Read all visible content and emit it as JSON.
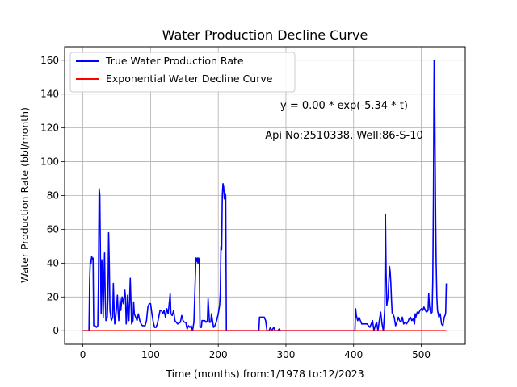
{
  "chart_data": {
    "type": "line",
    "title": "Water Production Decline Curve",
    "xlabel": "Time (months) from:1/1978 to:12/2023",
    "ylabel": "Water Production Rate (bbl/month)",
    "xlim": [
      -27,
      565
    ],
    "ylim": [
      -8,
      168
    ],
    "xticks": [
      0,
      100,
      200,
      300,
      400,
      500
    ],
    "yticks": [
      0,
      20,
      40,
      60,
      80,
      100,
      120,
      140,
      160
    ],
    "grid": true,
    "legend_position": "top-left",
    "annotations": [
      "y = 0.00 * exp(-5.34 * t)",
      "Api No:2510338, Well:86-S-10"
    ],
    "series": [
      {
        "name": "True Water Production Rate",
        "color": "#0000ff",
        "points": [
          [
            0,
            0
          ],
          [
            9,
            0
          ],
          [
            10,
            30
          ],
          [
            11,
            42
          ],
          [
            12,
            40
          ],
          [
            13,
            44
          ],
          [
            14,
            42
          ],
          [
            15,
            43
          ],
          [
            16,
            3
          ],
          [
            18,
            3
          ],
          [
            20,
            2
          ],
          [
            22,
            3
          ],
          [
            23,
            30
          ],
          [
            24,
            84
          ],
          [
            25,
            80
          ],
          [
            26,
            40
          ],
          [
            27,
            10
          ],
          [
            28,
            42
          ],
          [
            29,
            30
          ],
          [
            30,
            8
          ],
          [
            31,
            30
          ],
          [
            32,
            46
          ],
          [
            33,
            20
          ],
          [
            34,
            6
          ],
          [
            36,
            8
          ],
          [
            37,
            20
          ],
          [
            38,
            58
          ],
          [
            39,
            40
          ],
          [
            40,
            12
          ],
          [
            42,
            6
          ],
          [
            44,
            8
          ],
          [
            45,
            28
          ],
          [
            46,
            15
          ],
          [
            47,
            4
          ],
          [
            48,
            6
          ],
          [
            50,
            15
          ],
          [
            51,
            21
          ],
          [
            52,
            12
          ],
          [
            53,
            6
          ],
          [
            55,
            19
          ],
          [
            56,
            12
          ],
          [
            58,
            20
          ],
          [
            60,
            16
          ],
          [
            62,
            24
          ],
          [
            63,
            19
          ],
          [
            64,
            4
          ],
          [
            65,
            10
          ],
          [
            66,
            21
          ],
          [
            67,
            12
          ],
          [
            68,
            6
          ],
          [
            70,
            31
          ],
          [
            71,
            18
          ],
          [
            72,
            4
          ],
          [
            74,
            6
          ],
          [
            75,
            17
          ],
          [
            76,
            10
          ],
          [
            78,
            8
          ],
          [
            80,
            6
          ],
          [
            82,
            10
          ],
          [
            84,
            6
          ],
          [
            86,
            4
          ],
          [
            88,
            3
          ],
          [
            92,
            3
          ],
          [
            94,
            6
          ],
          [
            96,
            14
          ],
          [
            98,
            16
          ],
          [
            100,
            16
          ],
          [
            102,
            10
          ],
          [
            104,
            5
          ],
          [
            106,
            2
          ],
          [
            108,
            2
          ],
          [
            110,
            4
          ],
          [
            112,
            8
          ],
          [
            114,
            12
          ],
          [
            116,
            12
          ],
          [
            118,
            10
          ],
          [
            120,
            12
          ],
          [
            122,
            8
          ],
          [
            124,
            13
          ],
          [
            126,
            10
          ],
          [
            128,
            18
          ],
          [
            129,
            22
          ],
          [
            130,
            10
          ],
          [
            132,
            9
          ],
          [
            134,
            12
          ],
          [
            136,
            6
          ],
          [
            140,
            4
          ],
          [
            144,
            5
          ],
          [
            146,
            9
          ],
          [
            148,
            6
          ],
          [
            150,
            5
          ],
          [
            152,
            5
          ],
          [
            154,
            1
          ],
          [
            156,
            3
          ],
          [
            158,
            2
          ],
          [
            160,
            3
          ],
          [
            162,
            0
          ],
          [
            164,
            5
          ],
          [
            166,
            30
          ],
          [
            167,
            43
          ],
          [
            168,
            41
          ],
          [
            169,
            43
          ],
          [
            170,
            40
          ],
          [
            171,
            43
          ],
          [
            172,
            42
          ],
          [
            173,
            2
          ],
          [
            175,
            2
          ],
          [
            176,
            6
          ],
          [
            180,
            6
          ],
          [
            182,
            5
          ],
          [
            184,
            6
          ],
          [
            185,
            19
          ],
          [
            186,
            12
          ],
          [
            187,
            5
          ],
          [
            189,
            5
          ],
          [
            190,
            10
          ],
          [
            193,
            2
          ],
          [
            195,
            3
          ],
          [
            197,
            5
          ],
          [
            200,
            10
          ],
          [
            202,
            15
          ],
          [
            203,
            22
          ],
          [
            204,
            50
          ],
          [
            205,
            48
          ],
          [
            206,
            80
          ],
          [
            207,
            87
          ],
          [
            208,
            85
          ],
          [
            209,
            78
          ],
          [
            210,
            81
          ],
          [
            211,
            80
          ],
          [
            212,
            0
          ],
          [
            220,
            0
          ],
          [
            260,
            0
          ],
          [
            261,
            8
          ],
          [
            264,
            8
          ],
          [
            268,
            8
          ],
          [
            270,
            6
          ],
          [
            272,
            0
          ],
          [
            275,
            0
          ],
          [
            277,
            2
          ],
          [
            279,
            0
          ],
          [
            282,
            2
          ],
          [
            284,
            0
          ],
          [
            288,
            0
          ],
          [
            290,
            1
          ],
          [
            292,
            0
          ],
          [
            402,
            0
          ],
          [
            403,
            13
          ],
          [
            404,
            9
          ],
          [
            406,
            6
          ],
          [
            408,
            8
          ],
          [
            410,
            6
          ],
          [
            412,
            4
          ],
          [
            416,
            4
          ],
          [
            420,
            4
          ],
          [
            422,
            3
          ],
          [
            424,
            2
          ],
          [
            426,
            4
          ],
          [
            428,
            6
          ],
          [
            430,
            0
          ],
          [
            432,
            3
          ],
          [
            434,
            5
          ],
          [
            436,
            0
          ],
          [
            438,
            6
          ],
          [
            440,
            11
          ],
          [
            442,
            4
          ],
          [
            444,
            0
          ],
          [
            446,
            13
          ],
          [
            447,
            69
          ],
          [
            448,
            35
          ],
          [
            449,
            15
          ],
          [
            450,
            18
          ],
          [
            451,
            20
          ],
          [
            452,
            29
          ],
          [
            453,
            38
          ],
          [
            454,
            35
          ],
          [
            455,
            28
          ],
          [
            456,
            18
          ],
          [
            457,
            10
          ],
          [
            458,
            10
          ],
          [
            460,
            8
          ],
          [
            462,
            3
          ],
          [
            464,
            5
          ],
          [
            466,
            8
          ],
          [
            468,
            6
          ],
          [
            470,
            5
          ],
          [
            472,
            8
          ],
          [
            474,
            4
          ],
          [
            476,
            5
          ],
          [
            478,
            4
          ],
          [
            480,
            5
          ],
          [
            482,
            7
          ],
          [
            484,
            8
          ],
          [
            486,
            6
          ],
          [
            488,
            7
          ],
          [
            490,
            4
          ],
          [
            491,
            10
          ],
          [
            492,
            8
          ],
          [
            494,
            11
          ],
          [
            496,
            10
          ],
          [
            498,
            12
          ],
          [
            500,
            13
          ],
          [
            502,
            12
          ],
          [
            504,
            14
          ],
          [
            506,
            12
          ],
          [
            508,
            11
          ],
          [
            510,
            12
          ],
          [
            511,
            22
          ],
          [
            512,
            15
          ],
          [
            514,
            10
          ],
          [
            516,
            11
          ],
          [
            517,
            30
          ],
          [
            518,
            80
          ],
          [
            519,
            160
          ],
          [
            520,
            130
          ],
          [
            521,
            75
          ],
          [
            522,
            40
          ],
          [
            523,
            20
          ],
          [
            524,
            12
          ],
          [
            526,
            8
          ],
          [
            528,
            10
          ],
          [
            530,
            4
          ],
          [
            532,
            3
          ],
          [
            534,
            8
          ],
          [
            536,
            10
          ],
          [
            537,
            28
          ]
        ]
      },
      {
        "name": "Exponential Water Decline Curve",
        "color": "#ff0000",
        "points": [
          [
            0,
            0
          ],
          [
            537,
            0
          ]
        ]
      }
    ]
  }
}
